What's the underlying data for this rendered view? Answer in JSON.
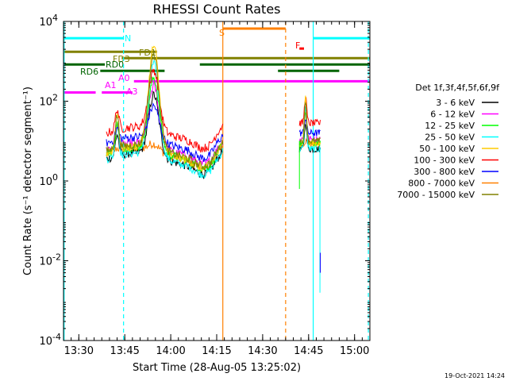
{
  "chart_data": {
    "type": "line",
    "title": "RHESSI Count Rates",
    "xlabel": "Start Time (28-Aug-05 13:25:02)",
    "ylabel": "Count Rate (s⁻¹ detector segment⁻¹)",
    "yscale": "log",
    "xlim_min_after_1325": [
      0,
      100
    ],
    "ylim": [
      0.0001,
      10000
    ],
    "y_ticks": [
      {
        "mant": "10",
        "exp": "-4",
        "v": -4
      },
      {
        "mant": "10",
        "exp": "-2",
        "v": -2
      },
      {
        "mant": "10",
        "exp": "0",
        "v": 0
      },
      {
        "mant": "10",
        "exp": "2",
        "v": 2
      },
      {
        "mant": "10",
        "exp": "4",
        "v": 4
      }
    ],
    "x_ticks": [
      {
        "label": "13:30",
        "t": 5
      },
      {
        "label": "13:45",
        "t": 20
      },
      {
        "label": "14:00",
        "t": 35
      },
      {
        "label": "14:15",
        "t": 50
      },
      {
        "label": "14:30",
        "t": 65
      },
      {
        "label": "14:45",
        "t": 80
      },
      {
        "label": "15:00",
        "t": 95
      }
    ],
    "legend_title": "Det 1f,3f,4f,5f,6f,9f",
    "legend_placement": "right",
    "series": [
      {
        "name": "3 - 6 keV",
        "color": "#000000",
        "base": 0.55,
        "peak": 2.08,
        "color_key": "black"
      },
      {
        "name": "6 - 12 keV",
        "color": "#ff00ff",
        "base": 0.8,
        "peak": 2.3,
        "color_key": "magenta"
      },
      {
        "name": "12 - 25 keV",
        "color": "#00ff00",
        "base": 0.7,
        "peak": 2.5,
        "color_key": "green"
      },
      {
        "name": "25 - 50 keV",
        "color": "#00ffff",
        "base": 0.55,
        "peak": 2.85,
        "color_key": "cyan"
      },
      {
        "name": "50 - 100 keV",
        "color": "#ffcc00",
        "base": 0.7,
        "peak": 3.3,
        "color_key": "yellow"
      },
      {
        "name": "100 - 300 keV",
        "color": "#ff0000",
        "base": 1.2,
        "peak": 2.7,
        "color_key": "red"
      },
      {
        "name": "300 - 800 keV",
        "color": "#0000ff",
        "base": 0.95,
        "peak": 1.8,
        "color_key": "blue"
      },
      {
        "name": "800 - 7000 keV",
        "color": "#ff8000",
        "base": 0.68,
        "peak": 0.85,
        "color_key": "orange"
      },
      {
        "name": "7000 - 15000 keV",
        "color": "#808000",
        "base": 0.75,
        "peak": 3.1,
        "color_key": "olive"
      }
    ],
    "flags": [
      {
        "label": "N",
        "color": "#00ffff",
        "y_log": 3.58,
        "segments": [
          [
            0,
            19.6
          ],
          [
            81.5,
            100
          ]
        ]
      },
      {
        "label": "FD1",
        "color": "#808000",
        "y_log": 3.24,
        "segments": [
          [
            0,
            30.5
          ]
        ]
      },
      {
        "label": "FD3",
        "color": "#808000",
        "y_log": 3.08,
        "segments": [
          [
            19,
            100
          ]
        ]
      },
      {
        "label": "RD0",
        "color": "#006400",
        "y_log": 2.92,
        "segments": [
          [
            0,
            13.5
          ],
          [
            44.5,
            100
          ]
        ]
      },
      {
        "label": "RD6",
        "color": "#006400",
        "y_log": 2.76,
        "segments": [
          [
            12,
            33
          ],
          [
            70,
            90
          ]
        ]
      },
      {
        "label": "A0",
        "color": "#ff00ff",
        "y_log": 2.5,
        "segments": [
          [
            23,
            100
          ]
        ]
      },
      {
        "label": "A1",
        "color": "#ff00ff",
        "y_log": 2.22,
        "segments": [
          [
            0,
            10.5
          ]
        ]
      },
      {
        "label": "A3",
        "color": "#ff00ff",
        "y_log": 2.22,
        "segments": [
          [
            12.5,
            22.5
          ]
        ]
      },
      {
        "label": "S",
        "color": "#ff8000",
        "y_log": 3.82,
        "segments": [
          [
            52,
            72.5
          ]
        ]
      },
      {
        "label": "F",
        "color": "#ff0000",
        "y_log": 3.32,
        "segments": [
          [
            77,
            78.5
          ]
        ]
      }
    ],
    "vlines": [
      {
        "t": 0.2,
        "color": "#00ffff",
        "dash": false
      },
      {
        "t": 19.6,
        "color": "#00ffff",
        "dash": true
      },
      {
        "t": 52,
        "color": "#ff8000",
        "dash": false
      },
      {
        "t": 72.5,
        "color": "#ff8000",
        "dash": true
      },
      {
        "t": 81.5,
        "color": "#00ffff",
        "dash": false
      },
      {
        "t": 99.5,
        "color": "#00ffff",
        "dash": true
      }
    ]
  },
  "footer_date": "19-Oct-2021 14:24"
}
